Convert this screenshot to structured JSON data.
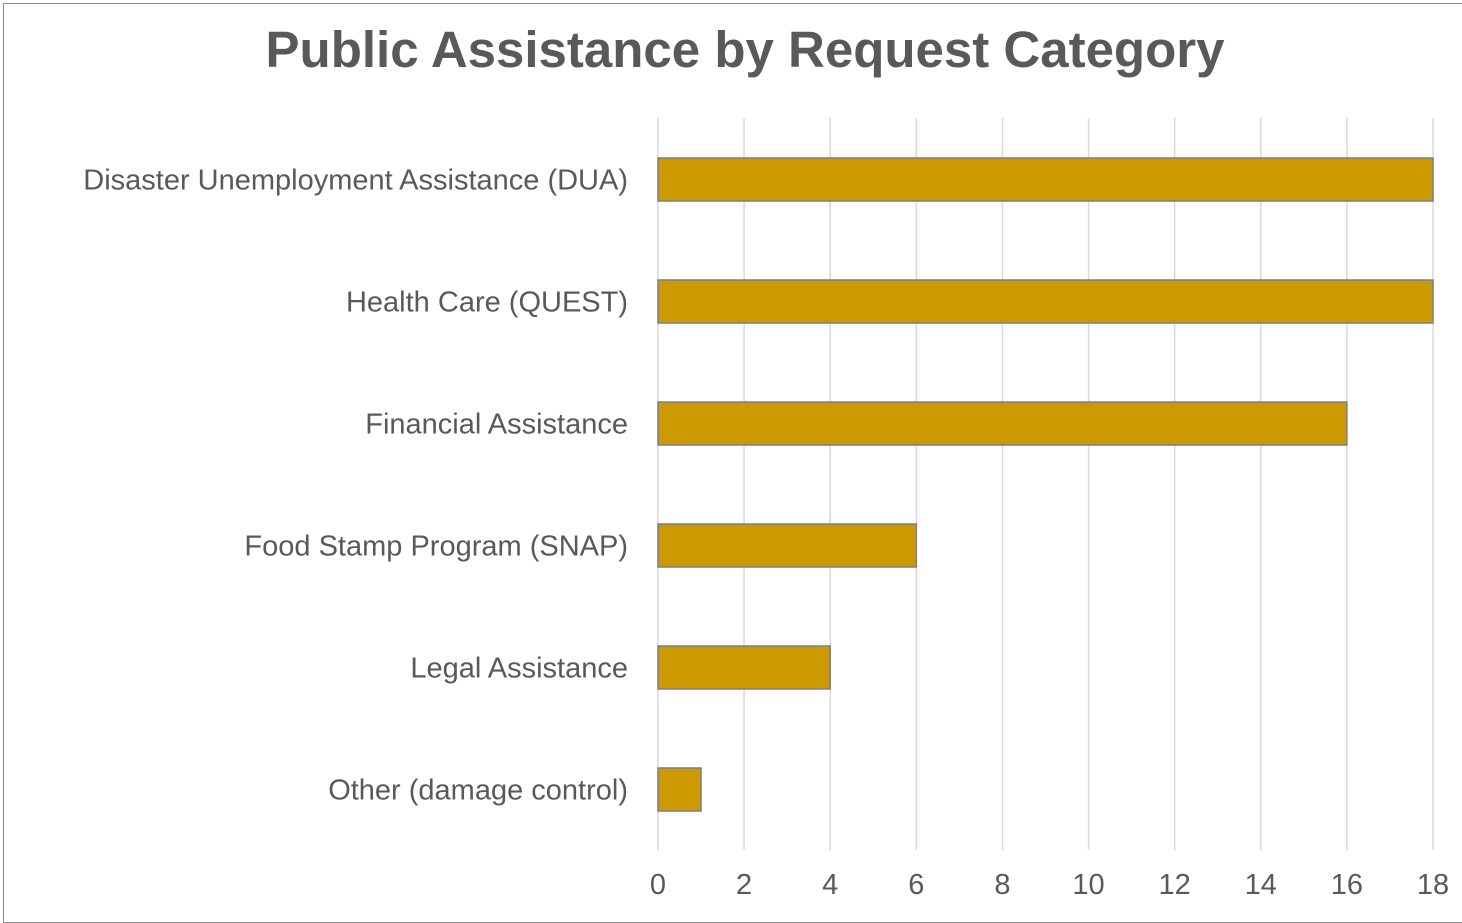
{
  "chart_data": {
    "type": "bar",
    "orientation": "horizontal",
    "title": "Public Assistance by Request Category",
    "categories": [
      "Disaster Unemployment Assistance (DUA)",
      "Health Care (QUEST)",
      "Financial Assistance",
      "Food Stamp Program (SNAP)",
      "Legal Assistance",
      "Other (damage control)"
    ],
    "values": [
      18,
      18,
      16,
      6,
      4,
      1
    ],
    "xlim": [
      0,
      18
    ],
    "xticks": [
      "0",
      "2",
      "4",
      "6",
      "8",
      "10",
      "12",
      "14",
      "16",
      "18"
    ],
    "xlabel": "",
    "ylabel": "",
    "grid": "vertical",
    "legend": "none",
    "colors": {
      "bar_fill": "#cc9900",
      "bar_stroke": "#7f7f7f",
      "gridline": "#d9d9d9",
      "text": "#595959"
    }
  }
}
